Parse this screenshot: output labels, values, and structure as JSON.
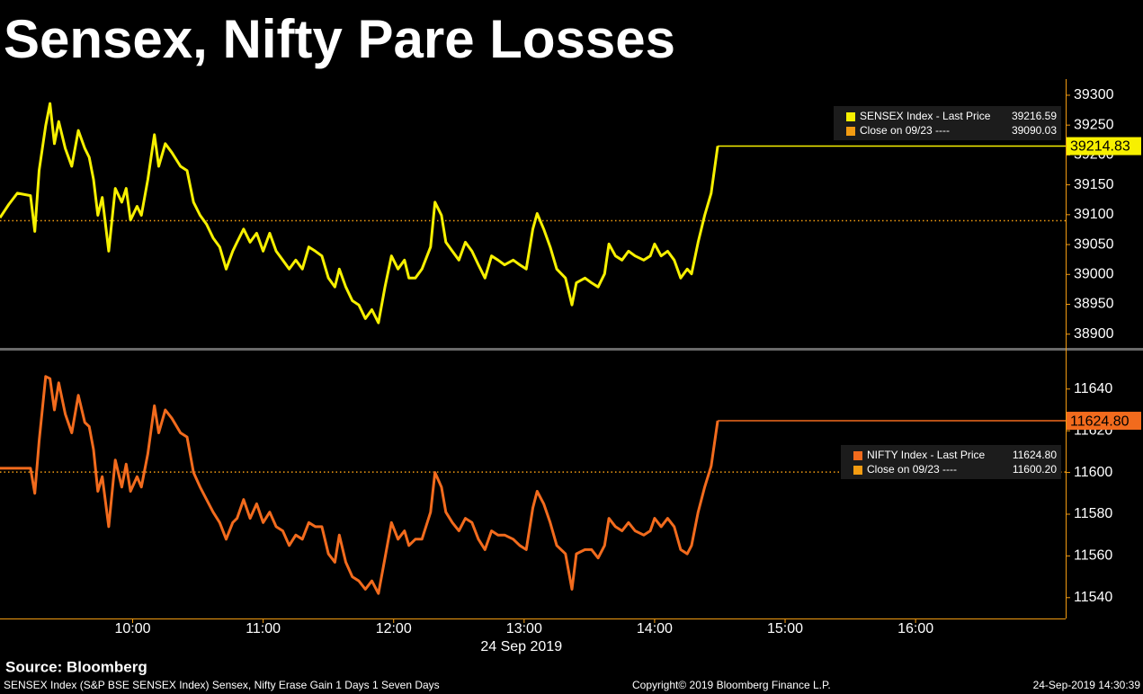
{
  "title": "Sensex, Nifty Pare Losses",
  "source": "Source: Bloomberg",
  "footer": {
    "left": "SENSEX Index (S&P BSE SENSEX Index) Sensex, Nifty Erase Gain 1 Days 1 Seven Days",
    "center": "Copyright© 2019 Bloomberg Finance L.P.",
    "right": "24-Sep-2019 14:30:39"
  },
  "chart_data": [
    {
      "type": "line",
      "x": [
        539,
        543,
        547,
        553,
        555,
        557,
        560,
        562,
        564,
        566,
        569,
        572,
        575,
        578,
        580,
        582,
        584,
        586,
        589,
        592,
        595,
        597,
        599,
        602,
        604,
        607,
        610,
        612,
        615,
        618,
        622,
        625,
        628,
        631,
        634,
        637,
        640,
        643,
        646,
        648,
        651,
        654,
        657,
        660,
        663,
        666,
        669,
        672,
        675,
        678,
        681,
        684,
        687,
        690,
        693,
        695,
        698,
        701,
        704,
        707,
        710,
        713,
        716,
        719,
        722,
        725,
        727,
        730,
        733,
        737,
        739,
        742,
        744,
        747,
        750,
        753,
        756,
        759,
        762,
        765,
        768,
        771,
        775,
        778,
        781,
        784,
        786,
        789,
        792,
        795,
        799,
        802,
        804,
        808,
        811,
        814,
        817,
        819,
        822,
        825,
        828,
        831,
        835,
        838,
        840,
        843,
        846,
        849,
        852,
        855,
        857,
        860,
        863,
        866,
        869
      ],
      "xlim": [
        539,
        1029
      ],
      "series": [
        {
          "name": "SENSEX Index - Last Price",
          "color": "#f7f000",
          "legend_value": 39216.59,
          "values": [
            39095,
            39117,
            39136,
            39132,
            39072,
            39174,
            39249,
            39286,
            39219,
            39256,
            39211,
            39181,
            39241,
            39211,
            39196,
            39159,
            39099,
            39129,
            39039,
            39144,
            39121,
            39144,
            39091,
            39114,
            39099,
            39159,
            39234,
            39181,
            39219,
            39204,
            39181,
            39174,
            39121,
            39099,
            39084,
            39061,
            39046,
            39009,
            39039,
            39054,
            39076,
            39054,
            39069,
            39039,
            39069,
            39039,
            39024,
            39009,
            39024,
            39009,
            39046,
            39039,
            39031,
            38994,
            38979,
            39009,
            38979,
            38956,
            38949,
            38926,
            38941,
            38919,
            38979,
            39031,
            39009,
            39024,
            38994,
            38994,
            39009,
            39046,
            39121,
            39099,
            39054,
            39039,
            39024,
            39054,
            39039,
            39016,
            38994,
            39031,
            39024,
            39016,
            39024,
            39016,
            39009,
            39076,
            39102,
            39076,
            39046,
            39009,
            38994,
            38949,
            38986,
            38994,
            38986,
            38979,
            39001,
            39051,
            39031,
            39024,
            39039,
            39031,
            39024,
            39031,
            39051,
            39031,
            39039,
            39024,
            38994,
            39009,
            39001,
            39054,
            39099,
            39136,
            39215
          ]
        }
      ],
      "reference_line": {
        "name": "Close on 09/23 ----",
        "value": 39090.03,
        "color": "#f39c12"
      },
      "price_tag": 39214.83,
      "ylim": [
        38877,
        39327
      ],
      "yticks": [
        38900,
        38950,
        39000,
        39050,
        39100,
        39150,
        39200,
        39250,
        39300
      ]
    },
    {
      "type": "line",
      "x": [
        539,
        543,
        547,
        553,
        555,
        557,
        560,
        562,
        564,
        566,
        569,
        572,
        575,
        578,
        580,
        582,
        584,
        586,
        589,
        592,
        595,
        597,
        599,
        602,
        604,
        607,
        610,
        612,
        615,
        618,
        622,
        625,
        628,
        631,
        634,
        637,
        640,
        643,
        646,
        648,
        651,
        654,
        657,
        660,
        663,
        666,
        669,
        672,
        675,
        678,
        681,
        684,
        687,
        690,
        693,
        695,
        698,
        701,
        704,
        707,
        710,
        713,
        716,
        719,
        722,
        725,
        727,
        730,
        733,
        737,
        739,
        742,
        744,
        747,
        750,
        753,
        756,
        759,
        762,
        765,
        768,
        771,
        775,
        778,
        781,
        784,
        786,
        789,
        792,
        795,
        799,
        802,
        804,
        808,
        811,
        814,
        817,
        819,
        822,
        825,
        828,
        831,
        835,
        838,
        840,
        843,
        846,
        849,
        852,
        855,
        857,
        860,
        863,
        866,
        869
      ],
      "xlim": [
        539,
        1029
      ],
      "xticks": [
        {
          "value": 600,
          "label": "10:00"
        },
        {
          "value": 660,
          "label": "11:00"
        },
        {
          "value": 720,
          "label": "12:00"
        },
        {
          "value": 780,
          "label": "13:00"
        },
        {
          "value": 840,
          "label": "14:00"
        },
        {
          "value": 900,
          "label": "15:00"
        },
        {
          "value": 960,
          "label": "16:00"
        }
      ],
      "x_label": "24 Sep 2019",
      "series": [
        {
          "name": "NIFTY Index - Last Price",
          "color": "#f26b1d",
          "legend_value": {
            "value": 11624.8,
            "label": "11624.80"
          },
          "values": [
            11602,
            11602,
            11602,
            11602,
            11590,
            11615,
            11646,
            11645,
            11630,
            11643,
            11628,
            11619,
            11637,
            11624,
            11622,
            11611,
            11591,
            11598,
            11574,
            11606,
            11593,
            11604,
            11591,
            11598,
            11593,
            11609,
            11632,
            11619,
            11630,
            11626,
            11619,
            11617,
            11600,
            11593,
            11587,
            11581,
            11576,
            11568,
            11576,
            11578,
            11587,
            11578,
            11585,
            11576,
            11581,
            11574,
            11572,
            11565,
            11570,
            11568,
            11576,
            11574,
            11574,
            11561,
            11557,
            11570,
            11557,
            11550,
            11548,
            11544,
            11548,
            11542,
            11559,
            11576,
            11568,
            11572,
            11565,
            11568,
            11568,
            11581,
            11600,
            11593,
            11581,
            11576,
            11572,
            11578,
            11576,
            11568,
            11563,
            11572,
            11570,
            11570,
            11568,
            11565,
            11563,
            11583,
            11591,
            11585,
            11576,
            11565,
            11561,
            11544,
            11561,
            11563,
            11563,
            11559,
            11565,
            11578,
            11574,
            11572,
            11576,
            11572,
            11570,
            11572,
            11578,
            11574,
            11578,
            11574,
            11563,
            11561,
            11565,
            11581,
            11593,
            11603,
            11624.8
          ]
        }
      ],
      "reference_line": {
        "name": "Close on 09/23 ----",
        "value": {
          "value": 11600.2,
          "label": "11600.20"
        },
        "color": "#f39c12"
      },
      "price_tag": {
        "value": 11624.8,
        "label": "11624.80"
      },
      "ylim": [
        11530,
        11658
      ],
      "yticks": [
        11540,
        11560,
        11580,
        11600,
        11620,
        11640
      ]
    }
  ]
}
